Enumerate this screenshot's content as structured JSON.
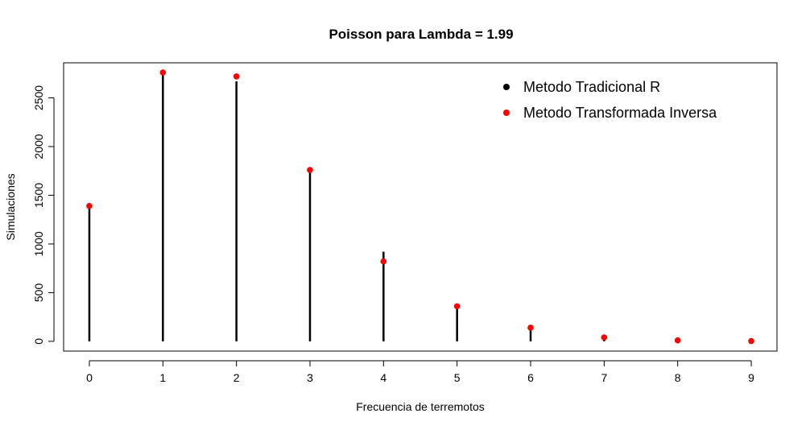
{
  "chart_data": {
    "type": "bar",
    "title": "Poisson para Lambda = 1.99",
    "xlabel": "Frecuencia de terremotos",
    "ylabel": "Simulaciones",
    "x": [
      0,
      1,
      2,
      3,
      4,
      5,
      6,
      7,
      8,
      9
    ],
    "xlim": [
      -0.35,
      9.35
    ],
    "ylim": [
      -100,
      2860
    ],
    "y_ticks": [
      0,
      500,
      1000,
      1500,
      2000,
      2500
    ],
    "x_ticks": [
      0,
      1,
      2,
      3,
      4,
      5,
      6,
      7,
      8,
      9
    ],
    "series": [
      {
        "name": "Metodo Tradicional R",
        "style": "vertical-line",
        "color": "#000000",
        "values": [
          1370,
          2760,
          2670,
          1770,
          920,
          350,
          120,
          30,
          5,
          0
        ]
      },
      {
        "name": "Metodo Transformada Inversa",
        "style": "point",
        "color": "#ff0000",
        "values": [
          1390,
          2760,
          2720,
          1760,
          820,
          360,
          140,
          40,
          10,
          3
        ]
      }
    ],
    "legend_position": "top-right",
    "grid": false
  }
}
